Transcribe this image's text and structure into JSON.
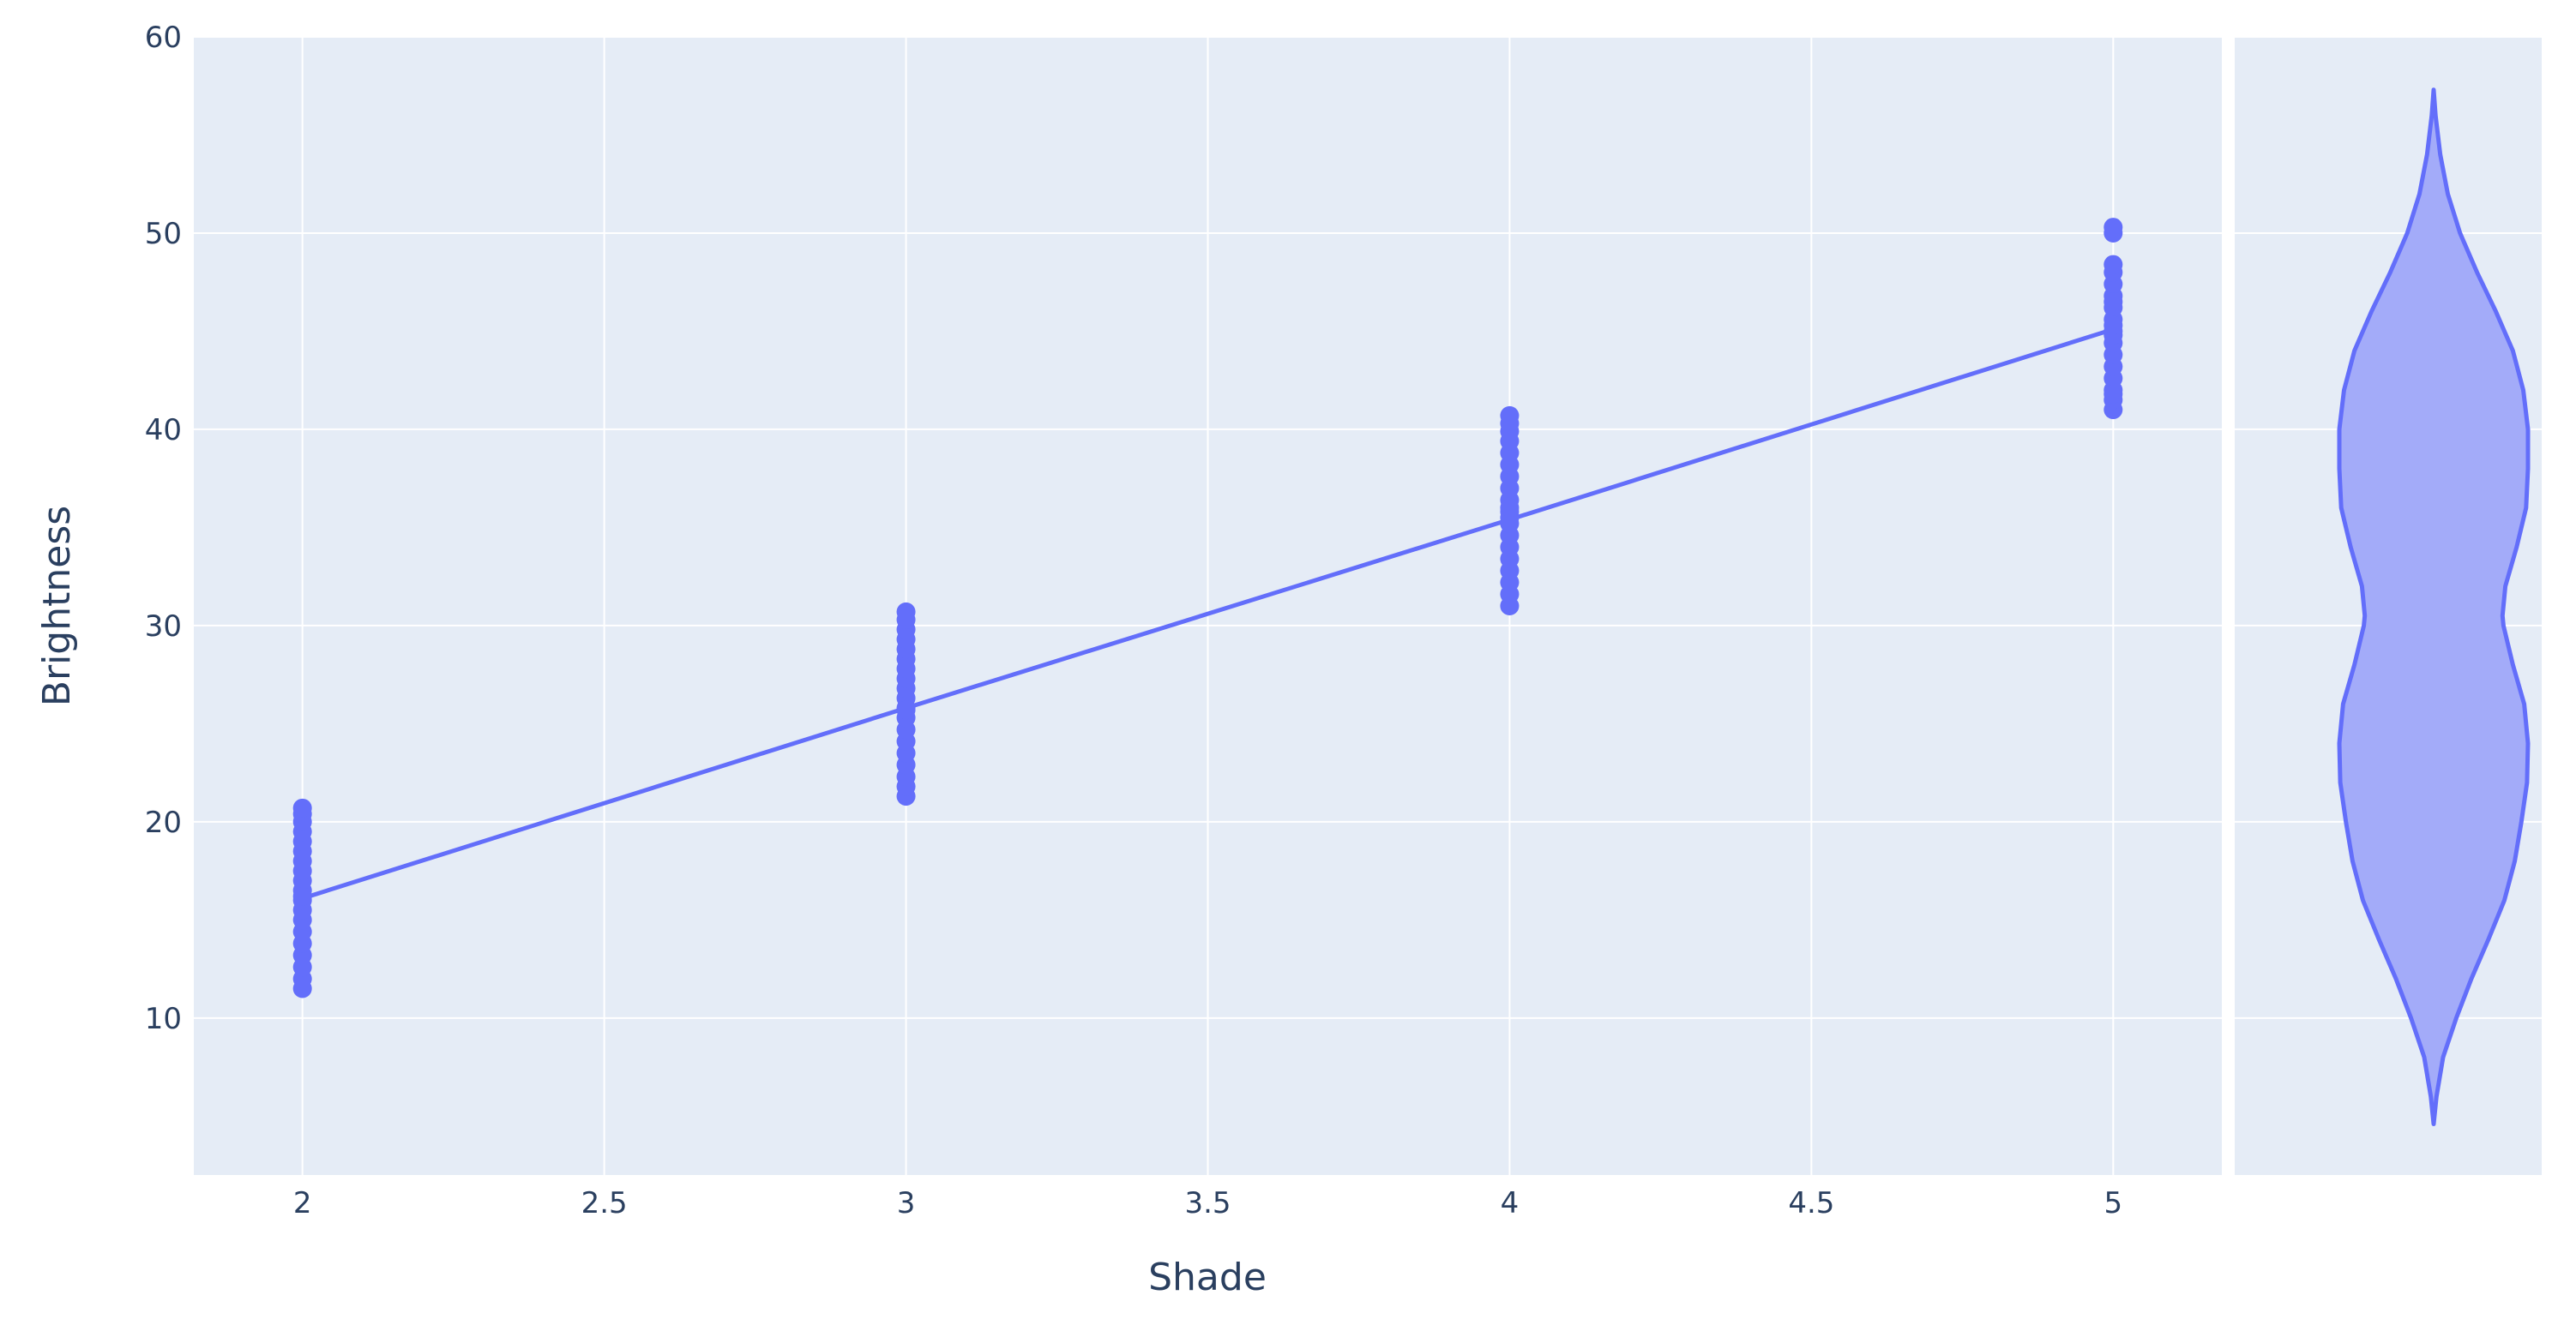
{
  "chart_data": {
    "type": "scatter",
    "xlabel": "Shade",
    "ylabel": "Brightness",
    "xlim": [
      1.82,
      5.18
    ],
    "ylim": [
      2,
      60
    ],
    "x_ticks": [
      2,
      2.5,
      3,
      3.5,
      4,
      4.5,
      5
    ],
    "x_tick_labels": [
      "2",
      "2.5",
      "3",
      "3.5",
      "4",
      "4.5",
      "5"
    ],
    "y_ticks": [
      10,
      20,
      30,
      40,
      50,
      60
    ],
    "y_tick_labels": [
      "10",
      "20",
      "30",
      "40",
      "50",
      "60"
    ],
    "grid": true,
    "colors": {
      "marker": "#636efa",
      "plot_background": "#e5ecf6",
      "grid": "#ffffff",
      "violin_fill": "#a3abf9",
      "text": "#2a3f5f"
    },
    "series": [
      {
        "type": "scatter",
        "x": [
          2,
          2,
          2,
          2,
          2,
          2,
          2,
          2,
          2,
          2,
          2,
          2,
          2,
          2,
          2,
          2,
          2,
          2,
          2,
          2,
          3,
          3,
          3,
          3,
          3,
          3,
          3,
          3,
          3,
          3,
          3,
          3,
          3,
          3,
          3,
          3,
          3,
          3,
          3,
          3,
          4,
          4,
          4,
          4,
          4,
          4,
          4,
          4,
          4,
          4,
          4,
          4,
          4,
          4,
          4,
          4,
          4,
          4,
          4,
          4,
          5,
          5,
          5,
          5,
          5,
          5,
          5,
          5,
          5,
          5,
          5,
          5,
          5,
          5,
          5,
          5,
          5,
          5,
          5,
          5
        ],
        "y": [
          11.5,
          12.0,
          12.6,
          13.2,
          13.8,
          14.4,
          15.0,
          15.5,
          16.0,
          16.5,
          17.0,
          17.5,
          18.0,
          18.5,
          19.0,
          19.5,
          20.0,
          20.4,
          20.7,
          16.2,
          21.3,
          21.8,
          22.3,
          22.9,
          23.5,
          24.1,
          24.7,
          25.3,
          25.8,
          26.3,
          26.8,
          27.3,
          27.8,
          28.3,
          28.8,
          29.3,
          29.8,
          30.3,
          30.7,
          25.7,
          31.0,
          31.6,
          32.2,
          32.8,
          33.4,
          34.0,
          34.6,
          35.2,
          35.8,
          36.4,
          37.0,
          37.6,
          38.2,
          38.8,
          39.4,
          39.9,
          40.3,
          40.7,
          35.5,
          36.0,
          41.0,
          41.5,
          42.0,
          42.6,
          43.2,
          43.8,
          44.4,
          45.0,
          45.6,
          46.2,
          46.8,
          47.4,
          48.0,
          48.4,
          50.0,
          50.3,
          41.8,
          44.8,
          45.3,
          46.5
        ],
        "marker": "circle"
      },
      {
        "type": "line",
        "x": [
          2,
          3,
          4,
          5
        ],
        "y": [
          16.1,
          25.8,
          35.4,
          45.1
        ]
      },
      {
        "type": "violin",
        "y_range": [
          4.6,
          57.3
        ],
        "density_y": [
          4.6,
          6,
          8,
          10,
          12,
          14,
          16,
          18,
          20,
          22,
          24,
          26,
          28,
          30,
          30.5,
          32,
          34,
          36,
          38,
          40,
          42,
          44,
          46,
          48,
          50,
          52,
          54,
          56,
          57.3
        ],
        "density": [
          0,
          0.03,
          0.1,
          0.24,
          0.4,
          0.58,
          0.75,
          0.86,
          0.93,
          0.99,
          1.0,
          0.96,
          0.84,
          0.74,
          0.73,
          0.76,
          0.88,
          0.98,
          1.0,
          1.0,
          0.95,
          0.84,
          0.66,
          0.46,
          0.28,
          0.15,
          0.07,
          0.02,
          0
        ]
      }
    ]
  }
}
